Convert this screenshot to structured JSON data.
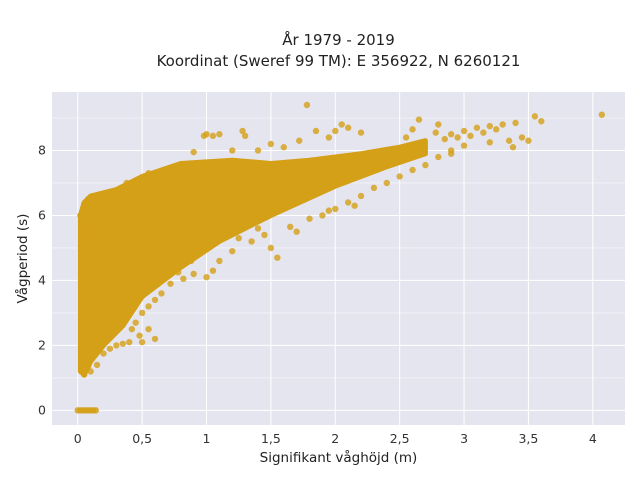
{
  "chart_data": {
    "type": "scatter",
    "title_line1": "År 1979 - 2019",
    "title_line2": "Koordinat (Sweref 99 TM): E 356922, N 6260121",
    "xlabel": "Signifikant våghöjd (m)",
    "ylabel": "Vågperiod (s)",
    "xlim": [
      -0.2,
      4.25
    ],
    "ylim": [
      -0.45,
      9.8
    ],
    "x_ticks": [
      0,
      0.5,
      1,
      1.5,
      2,
      2.5,
      3,
      3.5,
      4
    ],
    "x_tick_labels": [
      "0",
      "0,5",
      "1",
      "1,5",
      "2",
      "2,5",
      "3",
      "3,5",
      "4"
    ],
    "y_ticks": [
      0,
      2,
      4,
      6,
      8
    ],
    "y_tick_labels": [
      "0",
      "2",
      "4",
      "6",
      "8"
    ],
    "grid": true,
    "background_color": "#e5e5f0",
    "marker_color": "#d4a017",
    "dense_cloud": {
      "description_upper": [
        [
          0.02,
          6.0
        ],
        [
          0.05,
          6.4
        ],
        [
          0.1,
          6.6
        ],
        [
          0.3,
          6.8
        ],
        [
          0.5,
          7.2
        ],
        [
          0.8,
          7.6
        ],
        [
          1.2,
          7.7
        ],
        [
          1.5,
          7.6
        ],
        [
          1.8,
          7.7
        ],
        [
          2.2,
          7.9
        ],
        [
          2.5,
          8.1
        ],
        [
          2.7,
          8.3
        ]
      ],
      "description_lower": [
        [
          2.7,
          7.9
        ],
        [
          2.4,
          7.5
        ],
        [
          2.0,
          6.9
        ],
        [
          1.5,
          6.0
        ],
        [
          1.1,
          5.2
        ],
        [
          0.8,
          4.4
        ],
        [
          0.5,
          3.5
        ],
        [
          0.35,
          2.6
        ],
        [
          0.2,
          2.0
        ],
        [
          0.1,
          1.5
        ],
        [
          0.05,
          1.1
        ],
        [
          0.02,
          1.2
        ]
      ]
    },
    "zero_period_points_x": [
      0.0,
      0.02,
      0.04,
      0.06,
      0.08,
      0.1,
      0.12,
      0.14
    ],
    "scatter_points": [
      [
        4.07,
        9.1
      ],
      [
        1.78,
        9.4
      ],
      [
        3.55,
        9.05
      ],
      [
        3.6,
        8.9
      ],
      [
        3.4,
        8.85
      ],
      [
        3.3,
        8.8
      ],
      [
        3.25,
        8.65
      ],
      [
        3.2,
        8.75
      ],
      [
        3.15,
        8.55
      ],
      [
        3.1,
        8.7
      ],
      [
        3.0,
        8.6
      ],
      [
        2.95,
        8.4
      ],
      [
        2.9,
        8.5
      ],
      [
        2.85,
        8.35
      ],
      [
        3.05,
        8.45
      ],
      [
        2.8,
        8.8
      ],
      [
        2.78,
        8.55
      ],
      [
        2.65,
        8.95
      ],
      [
        2.6,
        8.65
      ],
      [
        2.55,
        8.4
      ],
      [
        2.05,
        8.8
      ],
      [
        2.1,
        8.7
      ],
      [
        2.0,
        8.6
      ],
      [
        1.95,
        8.4
      ],
      [
        1.72,
        8.3
      ],
      [
        1.85,
        8.6
      ],
      [
        2.2,
        8.55
      ],
      [
        3.5,
        8.3
      ],
      [
        3.45,
        8.4
      ],
      [
        3.35,
        8.3
      ],
      [
        3.38,
        8.1
      ],
      [
        3.2,
        8.25
      ],
      [
        3.0,
        8.15
      ],
      [
        2.9,
        8.0
      ],
      [
        1.0,
        8.5
      ],
      [
        1.05,
        8.45
      ],
      [
        1.1,
        8.5
      ],
      [
        1.3,
        8.45
      ],
      [
        1.28,
        8.6
      ],
      [
        0.98,
        8.45
      ],
      [
        1.5,
        8.2
      ],
      [
        1.6,
        8.1
      ],
      [
        1.4,
        8.0
      ],
      [
        1.2,
        8.0
      ],
      [
        0.9,
        7.95
      ],
      [
        0.55,
        7.3
      ],
      [
        0.45,
        7.05
      ],
      [
        0.38,
        7.0
      ],
      [
        0.3,
        6.7
      ],
      [
        0.2,
        6.5
      ],
      [
        0.15,
        6.2
      ],
      [
        0.08,
        6.5
      ],
      [
        0.05,
        6.35
      ],
      [
        0.02,
        6.0
      ],
      [
        0.1,
        5.6
      ],
      [
        0.06,
        5.3
      ],
      [
        0.03,
        5.25
      ],
      [
        0.12,
        4.9
      ],
      [
        0.15,
        5.1
      ],
      [
        1.5,
        5.0
      ],
      [
        1.55,
        4.7
      ],
      [
        1.35,
        5.2
      ],
      [
        1.25,
        5.3
      ],
      [
        1.2,
        4.9
      ],
      [
        1.1,
        4.6
      ],
      [
        1.05,
        4.3
      ],
      [
        1.0,
        4.1
      ],
      [
        0.9,
        4.2
      ],
      [
        0.88,
        4.6
      ],
      [
        0.82,
        4.05
      ],
      [
        0.78,
        4.25
      ],
      [
        0.72,
        3.9
      ],
      [
        0.65,
        3.6
      ],
      [
        0.6,
        3.4
      ],
      [
        0.55,
        3.2
      ],
      [
        0.5,
        3.0
      ],
      [
        0.45,
        2.7
      ],
      [
        0.42,
        2.5
      ],
      [
        0.55,
        2.5
      ],
      [
        0.6,
        2.2
      ],
      [
        0.5,
        2.1
      ],
      [
        0.48,
        2.3
      ],
      [
        0.4,
        2.1
      ],
      [
        0.35,
        2.05
      ],
      [
        0.3,
        2.0
      ],
      [
        0.25,
        1.9
      ],
      [
        0.2,
        1.75
      ],
      [
        0.15,
        1.4
      ],
      [
        0.1,
        1.2
      ],
      [
        0.05,
        1.1
      ],
      [
        0.03,
        1.5
      ],
      [
        0.08,
        1.35
      ],
      [
        1.9,
        6.0
      ],
      [
        1.95,
        6.15
      ],
      [
        2.0,
        6.2
      ],
      [
        1.8,
        5.9
      ],
      [
        2.1,
        6.4
      ],
      [
        2.2,
        6.6
      ],
      [
        2.3,
        6.85
      ],
      [
        2.4,
        7.0
      ],
      [
        2.5,
        7.2
      ],
      [
        2.6,
        7.4
      ],
      [
        2.7,
        7.55
      ],
      [
        2.8,
        7.8
      ],
      [
        2.9,
        7.9
      ],
      [
        1.65,
        5.65
      ],
      [
        1.7,
        5.5
      ],
      [
        1.45,
        5.4
      ],
      [
        1.4,
        5.6
      ],
      [
        2.15,
        6.3
      ]
    ]
  }
}
